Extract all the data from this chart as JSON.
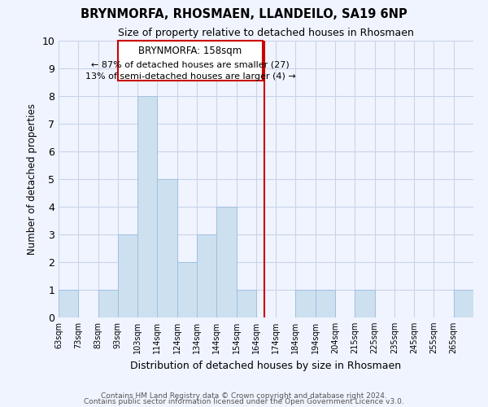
{
  "title": "BRYNMORFA, RHOSMAEN, LLANDEILO, SA19 6NP",
  "subtitle": "Size of property relative to detached houses in Rhosmaen",
  "xlabel": "Distribution of detached houses by size in Rhosmaen",
  "ylabel": "Number of detached properties",
  "bar_labels": [
    "63sqm",
    "73sqm",
    "83sqm",
    "93sqm",
    "103sqm",
    "114sqm",
    "124sqm",
    "134sqm",
    "144sqm",
    "154sqm",
    "164sqm",
    "174sqm",
    "184sqm",
    "194sqm",
    "204sqm",
    "215sqm",
    "225sqm",
    "235sqm",
    "245sqm",
    "255sqm",
    "265sqm"
  ],
  "bar_values": [
    1,
    0,
    1,
    3,
    8,
    5,
    2,
    3,
    4,
    1,
    0,
    0,
    1,
    1,
    0,
    1,
    0,
    0,
    0,
    0,
    1
  ],
  "bar_color": "#cce0f0",
  "bar_edge_color": "#a0c0e0",
  "marker_label": "BRYNMORFA: 158sqm",
  "marker_color": "#cc0000",
  "annotation_line1": "← 87% of detached houses are smaller (27)",
  "annotation_line2": "13% of semi-detached houses are larger (4) →",
  "ylim": [
    0,
    10
  ],
  "yticks": [
    0,
    1,
    2,
    3,
    4,
    5,
    6,
    7,
    8,
    9,
    10
  ],
  "footer1": "Contains HM Land Registry data © Crown copyright and database right 2024.",
  "footer2": "Contains public sector information licensed under the Open Government Licence v3.0.",
  "bg_color": "#f0f4ff",
  "grid_color": "#c8d4e8"
}
